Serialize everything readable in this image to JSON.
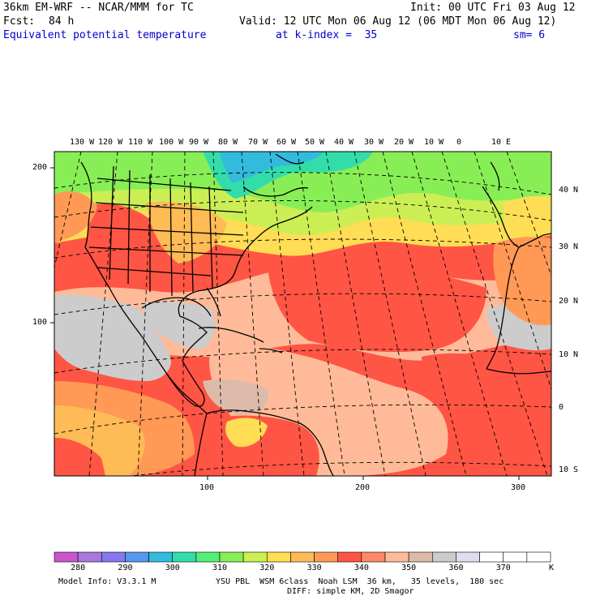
{
  "header": {
    "model": "36km EM-WRF -- NCAR/MMM for TC",
    "init": "Init: 00 UTC Fri 03 Aug 12",
    "fcst_label": "Fcst:",
    "fcst_hours": "84 h",
    "valid": "Valid: 12 UTC Mon 06 Aug 12 (06 MDT Mon 06 Aug 12)",
    "field": "Equivalent potential temperature",
    "level": "at k-index =  35",
    "smooth": "sm= 6"
  },
  "map": {
    "lon_labels": [
      "130 W",
      "120 W",
      "110 W",
      "100 W",
      "90 W",
      "80 W",
      "70 W",
      "60 W",
      "50 W",
      "40 W",
      "30 W",
      "20 W",
      "10 W",
      "0",
      "10 E"
    ],
    "lat_labels": [
      "40 N",
      "30 N",
      "20 N",
      "10 N",
      "0",
      "10 S"
    ],
    "y_grid_labels": [
      "200",
      "100"
    ],
    "x_grid_labels": [
      "100",
      "200",
      "300"
    ]
  },
  "colorbar": {
    "colors": [
      "#cc55cc",
      "#aa77dd",
      "#8877ee",
      "#5599ee",
      "#33bbdd",
      "#33ddaa",
      "#55ee77",
      "#88ee55",
      "#ccee55",
      "#ffdd55",
      "#ffbb55",
      "#ff9955",
      "#ff5544",
      "#ff8866",
      "#ffbb99",
      "#ddbbaa",
      "#cccccc",
      "#ddddee",
      "#ffffff",
      "#ffffff",
      "#ffffff"
    ],
    "tick_labels": [
      "280",
      "290",
      "300",
      "310",
      "320",
      "330",
      "340",
      "350",
      "360",
      "370"
    ],
    "units": "K"
  },
  "footer": {
    "model_info": "Model Info: V3.3.1 M",
    "physics": "YSU PBL  WSM 6class  Noah LSM  36 km,   35 levels,  180 sec",
    "diffusion": "DIFF: simple KM, 2D Smagor"
  },
  "colors": {
    "header_blue": "#0000cc",
    "ocean_warm": "#ff5544",
    "land_gray": "#cccccc"
  }
}
